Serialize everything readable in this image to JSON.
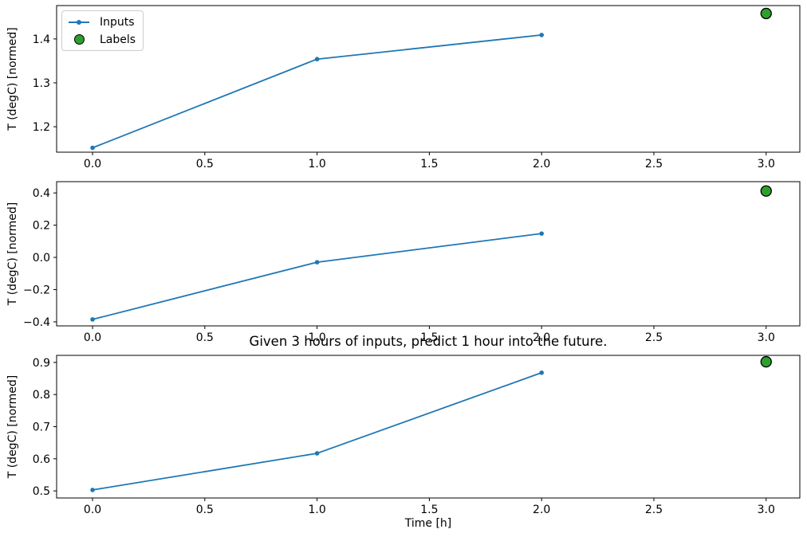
{
  "figure": {
    "background": "#ffffff",
    "axis_color": "#000000",
    "tick_label_color": "#000000",
    "legend_border_color": "#cccccc"
  },
  "chart_data": [
    {
      "type": "line",
      "title": "",
      "xlabel": "",
      "ylabel": "T (degC) [normed]",
      "xlim": [
        -0.16,
        3.15
      ],
      "ylim": [
        1.142,
        1.476
      ],
      "xticks": [
        0.0,
        0.5,
        1.0,
        1.5,
        2.0,
        2.5,
        3.0
      ],
      "yticks": [
        1.2,
        1.3,
        1.4
      ],
      "grid": false,
      "legend_position": "upper left",
      "series": [
        {
          "name": "Inputs",
          "type": "line",
          "color": "#1f77b4",
          "marker": "dot",
          "x": [
            0,
            1,
            2
          ],
          "y": [
            1.152,
            1.354,
            1.409
          ]
        },
        {
          "name": "Labels",
          "type": "scatter",
          "color": "#2ca02c",
          "edge_color": "#000000",
          "x": [
            3
          ],
          "y": [
            1.458
          ]
        }
      ]
    },
    {
      "type": "line",
      "title": "",
      "xlabel": "",
      "ylabel": "T (degC) [normed]",
      "xlim": [
        -0.16,
        3.15
      ],
      "ylim": [
        -0.425,
        0.47
      ],
      "xticks": [
        0.0,
        0.5,
        1.0,
        1.5,
        2.0,
        2.5,
        3.0
      ],
      "yticks": [
        -0.4,
        -0.2,
        0.0,
        0.2,
        0.4
      ],
      "grid": false,
      "legend_position": "none",
      "series": [
        {
          "name": "Inputs",
          "type": "line",
          "color": "#1f77b4",
          "marker": "dot",
          "x": [
            0,
            1,
            2
          ],
          "y": [
            -0.385,
            -0.03,
            0.148
          ]
        },
        {
          "name": "Labels",
          "type": "scatter",
          "color": "#2ca02c",
          "edge_color": "#000000",
          "x": [
            3
          ],
          "y": [
            0.412
          ]
        }
      ]
    },
    {
      "type": "line",
      "title": "Given 3 hours of inputs, predict 1 hour into the future.",
      "xlabel": "Time [h]",
      "ylabel": "T (degC) [normed]",
      "xlim": [
        -0.16,
        3.15
      ],
      "ylim": [
        0.478,
        0.922
      ],
      "xticks": [
        0.0,
        0.5,
        1.0,
        1.5,
        2.0,
        2.5,
        3.0
      ],
      "yticks": [
        0.5,
        0.6,
        0.7,
        0.8,
        0.9
      ],
      "grid": false,
      "legend_position": "none",
      "series": [
        {
          "name": "Inputs",
          "type": "line",
          "color": "#1f77b4",
          "marker": "dot",
          "x": [
            0,
            1,
            2
          ],
          "y": [
            0.503,
            0.617,
            0.868
          ]
        },
        {
          "name": "Labels",
          "type": "scatter",
          "color": "#2ca02c",
          "edge_color": "#000000",
          "x": [
            3
          ],
          "y": [
            0.902
          ]
        }
      ]
    }
  ]
}
